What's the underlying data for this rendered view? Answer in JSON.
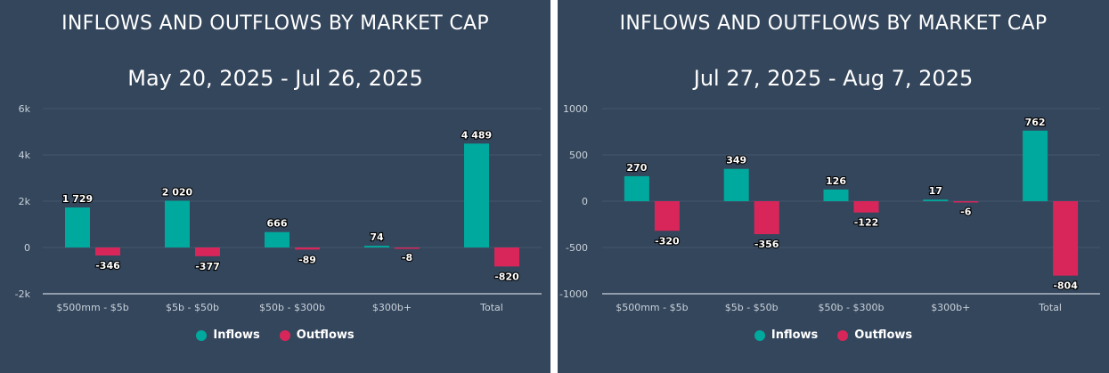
{
  "colors": {
    "inflows": "#00a99d",
    "outflows": "#d9265a",
    "background": "#34465c",
    "grid": "#45566b",
    "axis_text": "#c9d1da"
  },
  "chart_data": [
    {
      "type": "bar",
      "title": "INFLOWS AND OUTFLOWS BY MARKET CAP",
      "subtitle": "May 20, 2025 - Jul 26, 2025",
      "categories": [
        "$500mm - $5b",
        "$5b - $50b",
        "$50b - $300b",
        "$300b+",
        "Total"
      ],
      "series": [
        {
          "name": "Inflows",
          "values": [
            1729,
            2020,
            666,
            74,
            4489
          ],
          "labels": [
            "1 729",
            "2 020",
            "666",
            "74",
            "4 489"
          ]
        },
        {
          "name": "Outflows",
          "values": [
            -346,
            -377,
            -89,
            -8,
            -820
          ],
          "labels": [
            "-346",
            "-377",
            "-89",
            "-8",
            "-820"
          ]
        }
      ],
      "ylim": [
        -2000,
        6000
      ],
      "yticks": [
        -2000,
        0,
        2000,
        4000,
        6000
      ],
      "yticklabels": [
        "-2k",
        "0",
        "2k",
        "4k",
        "6k"
      ],
      "grid": true,
      "legend": "bottom-center"
    },
    {
      "type": "bar",
      "title": "INFLOWS AND OUTFLOWS BY MARKET CAP",
      "subtitle": "Jul 27, 2025 - Aug 7, 2025",
      "categories": [
        "$500mm - $5b",
        "$5b - $50b",
        "$50b - $300b",
        "$300b+",
        "Total"
      ],
      "series": [
        {
          "name": "Inflows",
          "values": [
            270,
            349,
            126,
            17,
            762
          ],
          "labels": [
            "270",
            "349",
            "126",
            "17",
            "762"
          ]
        },
        {
          "name": "Outflows",
          "values": [
            -320,
            -356,
            -122,
            -6,
            -804
          ],
          "labels": [
            "-320",
            "-356",
            "-122",
            "-6",
            "-804"
          ]
        }
      ],
      "ylim": [
        -1000,
        1000
      ],
      "yticks": [
        -1000,
        -500,
        0,
        500,
        1000
      ],
      "yticklabels": [
        "-1000",
        "-500",
        "0",
        "500",
        "1000"
      ],
      "grid": true,
      "legend": "bottom-center"
    }
  ]
}
